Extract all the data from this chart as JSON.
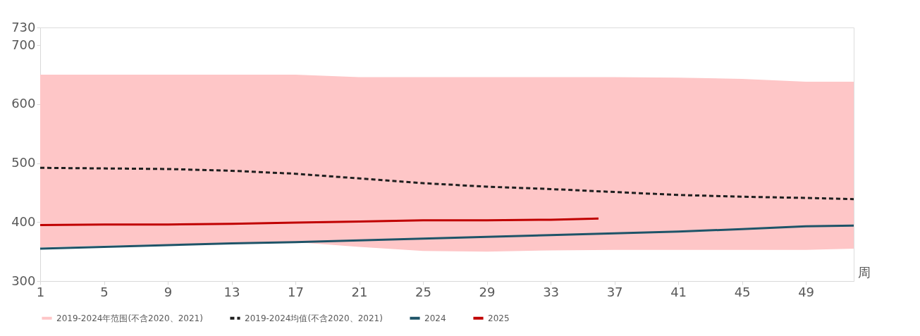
{
  "chart_data": {
    "type": "line",
    "xlabel": "周",
    "xlim": [
      1,
      52
    ],
    "xticks": [
      1,
      5,
      9,
      13,
      17,
      21,
      25,
      29,
      33,
      37,
      41,
      45,
      49
    ],
    "ylim": [
      300,
      730
    ],
    "yticks": [
      300,
      400,
      500,
      600,
      700,
      730
    ],
    "grid": false,
    "legend": "bottom",
    "series": [
      {
        "name": "2019-2024年范围(不含2020、2021)",
        "color": "#fec6c7",
        "x": [
          1,
          5,
          9,
          13,
          17,
          21,
          25,
          29,
          33,
          37,
          41,
          45,
          49,
          52
        ],
        "values": [
          649,
          649,
          649,
          649,
          649,
          645,
          645,
          645,
          645,
          645,
          644,
          642,
          637,
          637
        ],
        "lower": [
          357,
          360,
          362,
          364,
          366,
          358,
          351,
          350,
          352,
          353,
          353,
          353,
          353,
          355
        ],
        "upper": [
          649,
          649,
          649,
          649,
          649,
          645,
          645,
          645,
          645,
          645,
          644,
          642,
          637,
          637
        ]
      },
      {
        "name": "2019-2024均值(不含2020、2021)",
        "line_style": "dashed",
        "color": "#1f1f1f",
        "x": [
          1,
          5,
          9,
          13,
          17,
          21,
          25,
          29,
          33,
          37,
          41,
          45,
          49,
          52
        ],
        "values": [
          492,
          491,
          490,
          487,
          482,
          474,
          466,
          460,
          456,
          451,
          446,
          443,
          441,
          439
        ]
      },
      {
        "name": "2024",
        "line_style": "solid",
        "color": "#1e5468",
        "x": [
          1,
          5,
          9,
          13,
          17,
          21,
          25,
          29,
          33,
          37,
          41,
          45,
          49,
          52
        ],
        "values": [
          355,
          358,
          361,
          364,
          366,
          369,
          372,
          375,
          378,
          381,
          384,
          388,
          393,
          394
        ]
      },
      {
        "name": "2025",
        "line_style": "solid",
        "color": "#c00000",
        "x": [
          1,
          5,
          9,
          13,
          17,
          21,
          25,
          29,
          33,
          36
        ],
        "values": [
          395,
          396,
          396,
          397,
          399,
          401,
          403,
          403,
          404,
          406
        ]
      }
    ]
  }
}
